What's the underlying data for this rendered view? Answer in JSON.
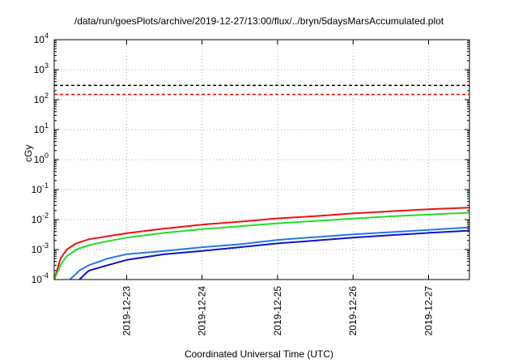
{
  "chart_data": {
    "type": "line",
    "title": "/data/run/goesPlots/archive/2019-12-27/13:00/flux/../bryn/5daysMarsAccumulated.plot",
    "xlabel": "Coordinated Universal Time (UTC)",
    "ylabel": "cGy",
    "yscale": "log",
    "ylim": [
      0.0001,
      10000
    ],
    "xlim": [
      "2019-12-22T01:00",
      "2019-12-27T13:00"
    ],
    "grid": true,
    "legend": "none",
    "ytick_labels": [
      {
        "base": "10",
        "exp": "-4"
      },
      {
        "base": "10",
        "exp": "-3"
      },
      {
        "base": "10",
        "exp": "-2"
      },
      {
        "base": "10",
        "exp": "-1"
      },
      {
        "base": "10",
        "exp": "0"
      },
      {
        "base": "10",
        "exp": "1"
      },
      {
        "base": "10",
        "exp": "2"
      },
      {
        "base": "10",
        "exp": "3"
      },
      {
        "base": "10",
        "exp": "4"
      }
    ],
    "xtick_labels": [
      "2019-12-23",
      "2019-12-24",
      "2019-12-25",
      "2019-12-26",
      "2019-12-27"
    ],
    "reference_lines": [
      {
        "y": 300,
        "color": "#000000",
        "style": "dashed"
      },
      {
        "y": 150,
        "color": "#ff0000",
        "style": "dashed"
      }
    ],
    "series": [
      {
        "color": "#ee1111",
        "x": [
          "2019-12-22T01:00",
          "2019-12-22T03:00",
          "2019-12-22T05:00",
          "2019-12-22T08:00",
          "2019-12-22T12:00",
          "2019-12-22T18:00",
          "2019-12-23T00:00",
          "2019-12-23T12:00",
          "2019-12-24T00:00",
          "2019-12-24T12:00",
          "2019-12-25T00:00",
          "2019-12-25T12:00",
          "2019-12-26T00:00",
          "2019-12-26T12:00",
          "2019-12-27T00:00",
          "2019-12-27T13:00"
        ],
        "values": [
          0.0001,
          0.0005,
          0.001,
          0.0016,
          0.0022,
          0.0028,
          0.0035,
          0.005,
          0.0068,
          0.0085,
          0.011,
          0.013,
          0.016,
          0.019,
          0.022,
          0.025
        ]
      },
      {
        "color": "#22dd22",
        "x": [
          "2019-12-22T01:00",
          "2019-12-22T03:00",
          "2019-12-22T05:00",
          "2019-12-22T08:00",
          "2019-12-22T12:00",
          "2019-12-22T18:00",
          "2019-12-23T00:00",
          "2019-12-23T12:00",
          "2019-12-24T00:00",
          "2019-12-24T12:00",
          "2019-12-25T00:00",
          "2019-12-25T12:00",
          "2019-12-26T00:00",
          "2019-12-26T12:00",
          "2019-12-27T00:00",
          "2019-12-27T13:00"
        ],
        "values": [
          0.0001,
          0.0003,
          0.0006,
          0.001,
          0.0014,
          0.0019,
          0.0025,
          0.0036,
          0.0048,
          0.006,
          0.0075,
          0.009,
          0.0108,
          0.0128,
          0.0148,
          0.017
        ]
      },
      {
        "color": "#2277ee",
        "x": [
          "2019-12-22T06:00",
          "2019-12-22T09:00",
          "2019-12-22T12:00",
          "2019-12-22T18:00",
          "2019-12-23T00:00",
          "2019-12-23T12:00",
          "2019-12-24T00:00",
          "2019-12-24T12:00",
          "2019-12-25T00:00",
          "2019-12-25T12:00",
          "2019-12-26T00:00",
          "2019-12-26T12:00",
          "2019-12-27T00:00",
          "2019-12-27T13:00"
        ],
        "values": [
          0.0001,
          0.0002,
          0.0003,
          0.0005,
          0.0007,
          0.0009,
          0.0012,
          0.0015,
          0.0021,
          0.0026,
          0.0032,
          0.0038,
          0.0045,
          0.0055
        ]
      },
      {
        "color": "#1111cc",
        "x": [
          "2019-12-22T09:00",
          "2019-12-22T12:00",
          "2019-12-22T18:00",
          "2019-12-23T00:00",
          "2019-12-23T12:00",
          "2019-12-24T00:00",
          "2019-12-24T12:00",
          "2019-12-25T00:00",
          "2019-12-25T12:00",
          "2019-12-26T00:00",
          "2019-12-26T12:00",
          "2019-12-27T00:00",
          "2019-12-27T13:00"
        ],
        "values": [
          0.0001,
          0.0002,
          0.0003,
          0.00045,
          0.0007,
          0.0009,
          0.0012,
          0.0016,
          0.002,
          0.0025,
          0.003,
          0.0036,
          0.0043
        ]
      }
    ]
  }
}
